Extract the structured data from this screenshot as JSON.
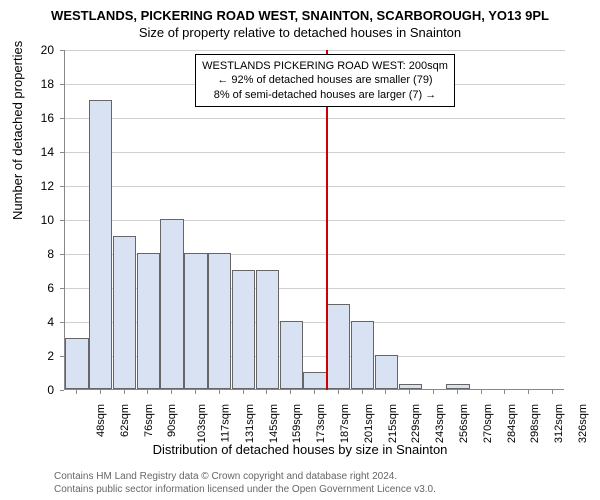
{
  "title": "WESTLANDS, PICKERING ROAD WEST, SNAINTON, SCARBOROUGH, YO13 9PL",
  "subtitle": "Size of property relative to detached houses in Snainton",
  "yaxis_label": "Number of detached properties",
  "xaxis_label": "Distribution of detached houses by size in Snainton",
  "ylim": [
    0,
    20
  ],
  "ytick_step": 2,
  "bar_fill": "#d9e2f3",
  "bar_border": "#666666",
  "grid_color": "#d0d0d0",
  "ref_line_color": "#cc0000",
  "ref_line_x_category_index": 11,
  "annotation": {
    "line1": "WESTLANDS PICKERING ROAD WEST: 200sqm",
    "line2": "← 92% of detached houses are smaller (79)",
    "line3": "8% of semi-detached houses are larger (7) →"
  },
  "categories": [
    "48sqm",
    "62sqm",
    "76sqm",
    "90sqm",
    "103sqm",
    "117sqm",
    "131sqm",
    "145sqm",
    "159sqm",
    "173sqm",
    "187sqm",
    "201sqm",
    "215sqm",
    "229sqm",
    "243sqm",
    "256sqm",
    "270sqm",
    "284sqm",
    "298sqm",
    "312sqm",
    "326sqm"
  ],
  "values": [
    3,
    17,
    9,
    8,
    10,
    8,
    8,
    7,
    7,
    4,
    1,
    5,
    4,
    2,
    0.3,
    0,
    0.3,
    0,
    0,
    0,
    0
  ],
  "footer": {
    "line1": "Contains HM Land Registry data © Crown copyright and database right 2024.",
    "line2": "Contains public sector information licensed under the Open Government Licence v3.0."
  }
}
